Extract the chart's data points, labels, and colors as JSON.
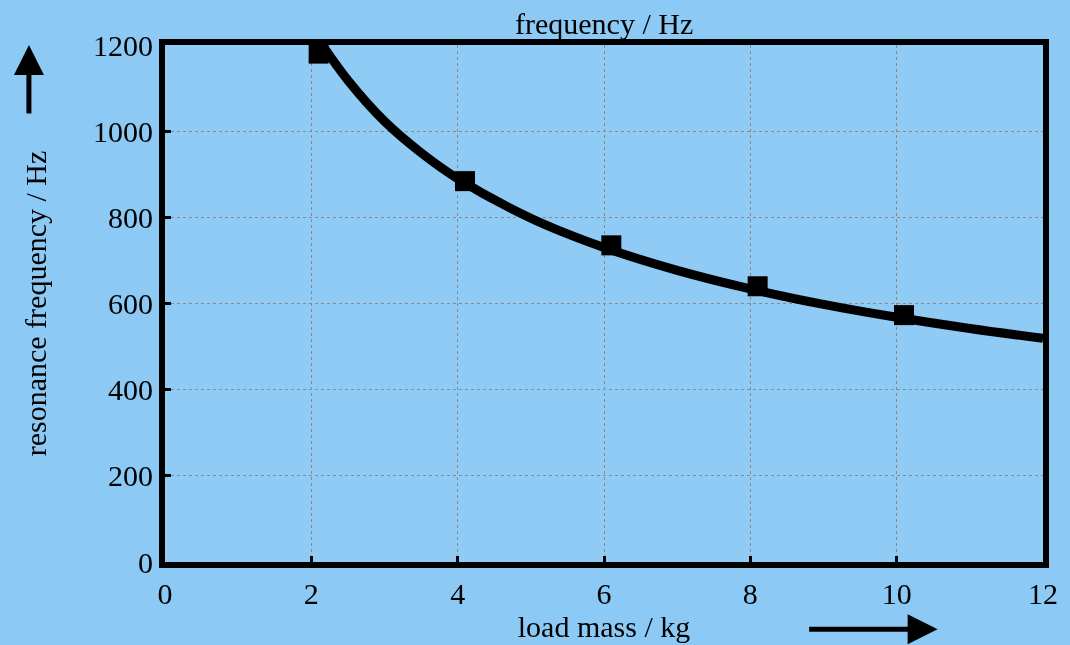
{
  "chart_data": {
    "type": "scatter",
    "xlabel": "load mass / kg",
    "ylabel": "resonance frequency / Hz",
    "annotations": [
      "frequency / Hz"
    ],
    "series": [
      {
        "type": "line",
        "color": "#000000",
        "marker": "none",
        "line_style": "solid",
        "x": [
          2.15,
          2.5,
          3,
          3.5,
          4,
          5,
          6,
          7,
          8,
          9,
          10,
          11,
          12
        ],
        "values": [
          1200,
          1118,
          1023,
          950,
          890,
          798,
          730,
          677,
          634,
          598,
          568,
          542,
          519
        ]
      },
      {
        "color": "#000000",
        "marker": "square",
        "x": [
          2.1,
          4.1,
          6.1,
          8.1,
          10.1
        ],
        "values": [
          1180,
          884,
          735,
          640,
          573
        ]
      }
    ],
    "xlim": [
      0,
      12
    ],
    "xticks": [
      0,
      2,
      4,
      6,
      8,
      10,
      12
    ],
    "ylim": [
      0,
      1200
    ],
    "yticks": [
      0,
      200,
      400,
      600,
      800,
      1000,
      1200
    ],
    "grid": true
  }
}
